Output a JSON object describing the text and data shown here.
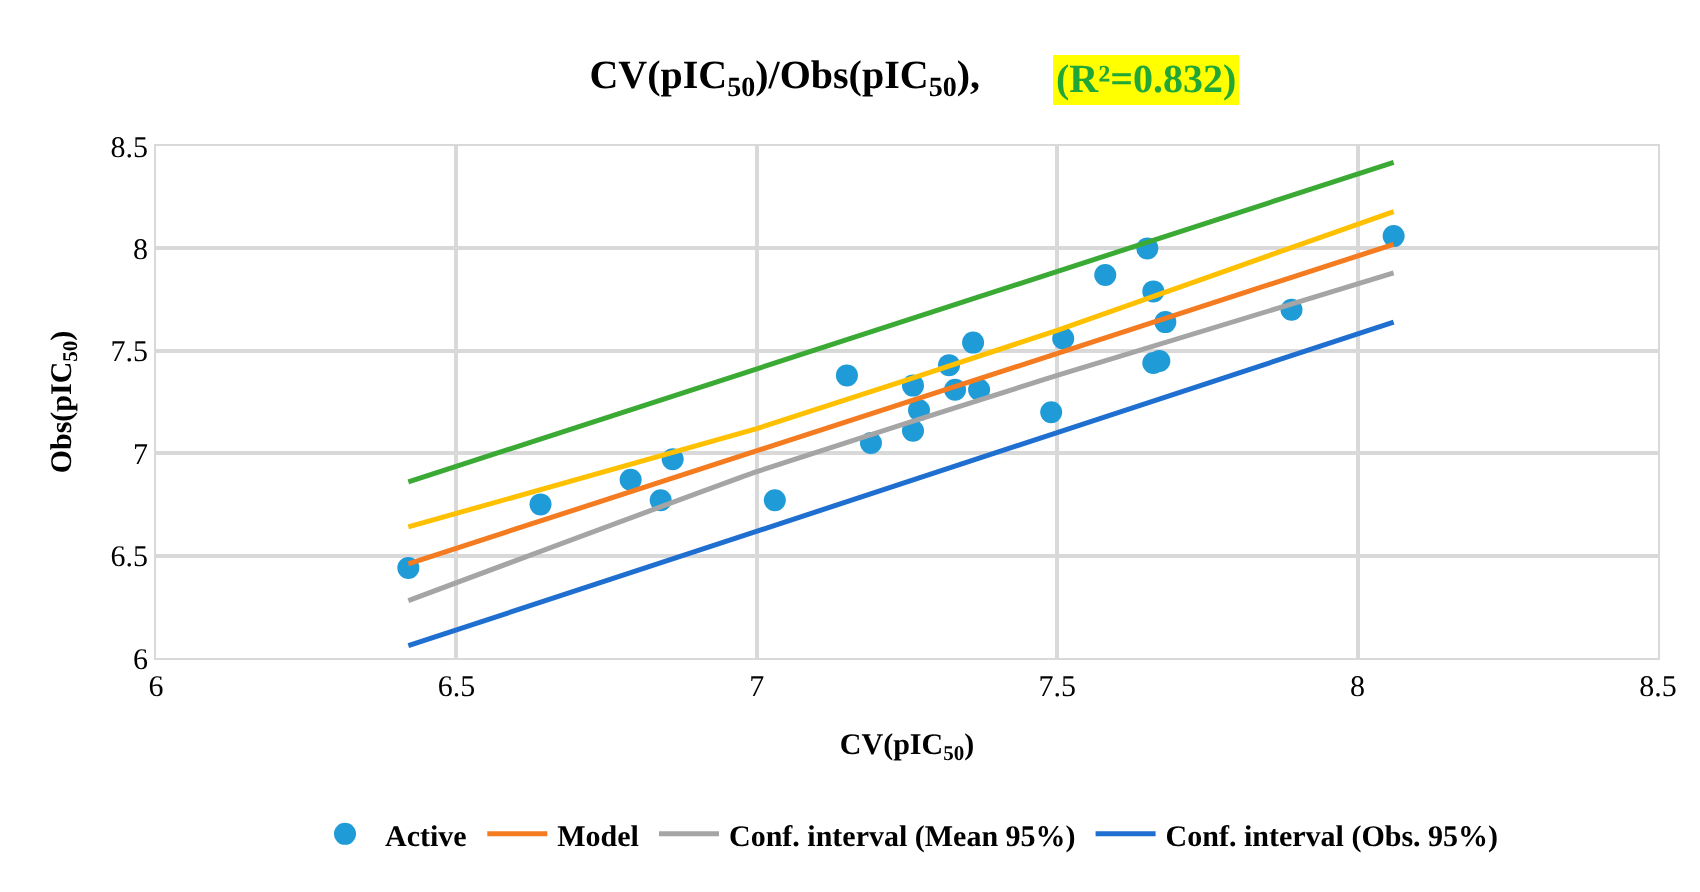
{
  "chart_data": {
    "type": "scatter",
    "title": "CV(pIC$_{50}$)/Obs(pIC$_{50}$),",
    "annotations": [
      "(R²=0.832)"
    ],
    "xlabel": "CV(pIC$_{50}$)",
    "ylabel": "Obs(pIC$_{50}$)",
    "xlim": [
      6,
      8.5
    ],
    "xticks": [
      6,
      6.5,
      7,
      7.5,
      8,
      8.5
    ],
    "ylim": [
      6,
      8.5
    ],
    "yticks": [
      6,
      6.5,
      7,
      7.5,
      8,
      8.5
    ],
    "grid": true,
    "legend": "bottom",
    "series": [
      {
        "name": "Active",
        "marker": "circle",
        "color": "#1f9bd7",
        "x": [
          6.42,
          6.64,
          6.79,
          6.84,
          6.86,
          7.03,
          7.15,
          7.19,
          7.26,
          7.27,
          7.26,
          7.32,
          7.33,
          7.37,
          7.36,
          7.49,
          7.51,
          7.58,
          7.65,
          7.66,
          7.68,
          7.66,
          7.67,
          7.89,
          8.06
        ],
        "values": [
          6.44,
          6.75,
          6.87,
          6.77,
          6.97,
          6.77,
          7.38,
          7.05,
          7.11,
          7.21,
          7.33,
          7.43,
          7.31,
          7.31,
          7.54,
          7.2,
          7.56,
          7.87,
          8.0,
          7.79,
          7.64,
          7.44,
          7.45,
          7.7,
          8.06
        ]
      },
      {
        "name": "Model",
        "type": "line",
        "color": "#f47b20",
        "x": [
          6.42,
          8.06
        ],
        "values": [
          6.46,
          8.02
        ]
      },
      {
        "name": "Conf. interval (Mean 95%)",
        "type": "line",
        "color": "#a5a5a5",
        "x": [
          6.42,
          7.0,
          7.5,
          8.06
        ],
        "values": [
          6.28,
          6.91,
          7.38,
          7.88
        ]
      },
      {
        "name": "Conf. interval (Obs. 95%)",
        "type": "line",
        "color": "#1f6fd0",
        "x": [
          6.42,
          8.06
        ],
        "values": [
          6.06,
          7.64
        ]
      },
      {
        "type": "line",
        "color": "#3aaa35",
        "x": [
          6.42,
          8.06
        ],
        "values": [
          6.86,
          8.42
        ]
      },
      {
        "type": "line",
        "color": "#ffc000",
        "x": [
          6.42,
          7.0,
          7.5,
          8.06
        ],
        "values": [
          6.64,
          7.12,
          7.6,
          8.18
        ]
      }
    ]
  }
}
